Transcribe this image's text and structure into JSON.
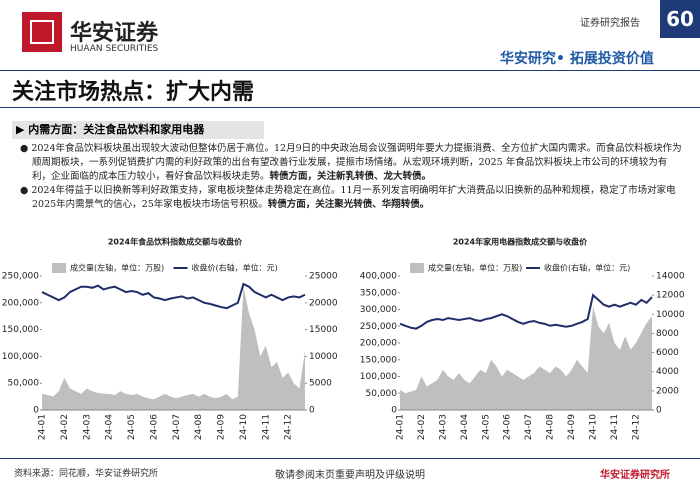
{
  "header": {
    "company": "华安证券",
    "company_en": "HUAAN SECURITIES",
    "report_type": "证券研究报告",
    "page": "60",
    "slogan": "华安研究• 拓展投资价值"
  },
  "title": "关注市场热点：扩大内需",
  "section": "内需方面：关注食品饮料和家用电器",
  "bullets": [
    {
      "text": "2024年食品饮料板块虽出现较大波动但整体仍居于高位。12月9日的中央政治局会议强调明年要大力提振消费、全方位扩大国内需求。而食品饮料板块作为顺周期板块，一系列促销费扩内需的利好政策的出台有望改善行业发展，提振市场情绪。从宏观环境判断，2025 年食品饮料板块上市公司的环境较为有利，企业面临的成本压力较小，看好食品饮料板块走势。",
      "bold": "转债方面，关注新乳转债、龙大转债。"
    },
    {
      "text": "2024年得益于以旧换新等利好政策支持，家电板块整体走势稳定在高位。11月一系列发言明确明年扩大消费品以旧换新的品种和规模，稳定了市场对家电2025年内需景气的信心，25年家电板块市场信号积极。",
      "bold": "转债方面，关注聚光转债、华翔转债。"
    }
  ],
  "chart_data": [
    {
      "type": "area-line",
      "title": "2024年食品饮料指数成交额与收盘价",
      "categories": [
        "24-01",
        null,
        null,
        null,
        "24-02",
        null,
        null,
        null,
        "24-03",
        null,
        null,
        null,
        "24-04",
        null,
        null,
        null,
        "24-05",
        null,
        null,
        null,
        "24-06",
        null,
        null,
        null,
        "24-07",
        null,
        null,
        null,
        "24-08",
        null,
        null,
        null,
        "24-09",
        null,
        null,
        null,
        "24-10",
        null,
        null,
        null,
        "24-11",
        null,
        null,
        null,
        "24-12",
        null,
        null,
        null
      ],
      "series": [
        {
          "name": "成交量(左轴，单位：万股)",
          "color": "#bfbfbf",
          "values": [
            30000,
            28000,
            25000,
            35000,
            60000,
            40000,
            35000,
            30000,
            40000,
            35000,
            32000,
            30000,
            30000,
            28000,
            35000,
            30000,
            28000,
            30000,
            25000,
            22000,
            20000,
            25000,
            30000,
            25000,
            22000,
            25000,
            28000,
            30000,
            25000,
            30000,
            25000,
            22000,
            25000,
            30000,
            20000,
            25000,
            230000,
            180000,
            150000,
            100000,
            120000,
            80000,
            90000,
            60000,
            70000,
            50000,
            40000,
            110000
          ]
        },
        {
          "name": "收盘价(右轴，单位：元)",
          "color": "#1f2d6b",
          "axis": "y2",
          "values": [
            22000,
            21500,
            21000,
            20500,
            21000,
            22000,
            22500,
            23000,
            23000,
            22800,
            23200,
            22500,
            22800,
            23000,
            22500,
            22000,
            22200,
            22000,
            21500,
            21800,
            21000,
            20800,
            20500,
            20800,
            21000,
            21200,
            20800,
            21000,
            20500,
            20000,
            19800,
            19500,
            19200,
            19000,
            19500,
            20000,
            23500,
            23000,
            22000,
            21500,
            21000,
            21500,
            21000,
            20500,
            21000,
            21200,
            21000,
            21500
          ]
        }
      ],
      "ylim": [
        0,
        250000
      ],
      "yticks": [
        0,
        {
          "value": 50000,
          "label": "50,000"
        },
        {
          "value": 100000,
          "label": "100,000"
        },
        {
          "value": 150000,
          "label": "150,000"
        },
        {
          "value": 200000,
          "label": "200,000"
        },
        {
          "value": 250000,
          "label": "250,000"
        }
      ],
      "y2lim": [
        0,
        25000
      ],
      "y2ticks": [
        0,
        5000,
        10000,
        15000,
        20000,
        25000
      ]
    },
    {
      "type": "area-line",
      "title": "2024年家用电器指数成交额与收盘价",
      "categories": [
        "24-01",
        null,
        null,
        null,
        "24-02",
        null,
        null,
        null,
        "24-03",
        null,
        null,
        null,
        "24-04",
        null,
        null,
        null,
        "24-05",
        null,
        null,
        null,
        "24-06",
        null,
        null,
        null,
        "24-07",
        null,
        null,
        null,
        "24-08",
        null,
        null,
        null,
        "24-09",
        null,
        null,
        null,
        "24-10",
        null,
        null,
        null,
        "24-11",
        null,
        null,
        null,
        "24-12",
        null,
        null,
        null
      ],
      "series": [
        {
          "name": "成交量(左轴，单位：万股)",
          "color": "#bfbfbf",
          "values": [
            60000,
            50000,
            55000,
            60000,
            100000,
            70000,
            80000,
            90000,
            120000,
            100000,
            90000,
            110000,
            90000,
            80000,
            100000,
            120000,
            110000,
            150000,
            130000,
            100000,
            120000,
            110000,
            100000,
            90000,
            100000,
            110000,
            130000,
            120000,
            110000,
            130000,
            120000,
            100000,
            120000,
            150000,
            130000,
            110000,
            310000,
            250000,
            230000,
            260000,
            200000,
            180000,
            220000,
            180000,
            200000,
            230000,
            260000,
            280000
          ]
        },
        {
          "name": "收盘价(右轴，单位：元)",
          "color": "#1f2d6b",
          "axis": "y2",
          "values": [
            9000,
            8800,
            8600,
            8500,
            8800,
            9200,
            9400,
            9500,
            9400,
            9600,
            9500,
            9400,
            9500,
            9600,
            9400,
            9300,
            9500,
            9600,
            9800,
            10000,
            9800,
            9500,
            9200,
            9000,
            9200,
            9300,
            9100,
            9000,
            8800,
            8900,
            8800,
            8700,
            8800,
            9000,
            9200,
            9500,
            12000,
            11500,
            11000,
            10800,
            11000,
            10800,
            11000,
            11200,
            11000,
            11500,
            11200,
            11800
          ]
        }
      ],
      "ylim": [
        0,
        400000
      ],
      "yticks": [
        0,
        {
          "value": 50000,
          "label": "50,000"
        },
        {
          "value": 100000,
          "label": "100,000"
        },
        {
          "value": 150000,
          "label": "150,000"
        },
        {
          "value": 200000,
          "label": "200,000"
        },
        {
          "value": 250000,
          "label": "250,000"
        },
        {
          "value": 300000,
          "label": "300,000"
        },
        {
          "value": 350000,
          "label": "350,000"
        },
        {
          "value": 400000,
          "label": "400,000"
        }
      ],
      "y2lim": [
        0,
        14000
      ],
      "y2ticks": [
        0,
        2000,
        4000,
        6000,
        8000,
        10000,
        12000,
        14000
      ]
    }
  ],
  "footer": {
    "source": "资料来源：同花顺，华安证券研究所",
    "disclaimer": "敬请参阅末页重要声明及评级说明",
    "brand": "华安证券研究所"
  }
}
